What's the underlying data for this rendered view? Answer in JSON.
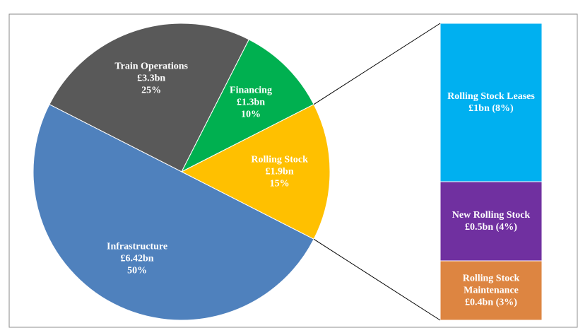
{
  "chart_data": {
    "type": "pie-of-bar",
    "categories": [
      "Train Operations",
      "Financing",
      "Rolling Stock",
      "Infrastructure"
    ],
    "amount_labels": [
      "£3.3bn",
      "£1.3bn",
      "£1.9bn",
      "£6.42bn"
    ],
    "values": [
      25,
      10,
      15,
      50
    ],
    "value_labels": [
      "25%",
      "10%",
      "15%",
      "50%"
    ],
    "colors": [
      "#595959",
      "#00b050",
      "#ffc000",
      "#4f81bd"
    ],
    "detail": {
      "categories": [
        "Rolling Stock Leases",
        "New Rolling Stock",
        "Rolling Stock Maintenance"
      ],
      "values": [
        8,
        4,
        3
      ],
      "value_labels": [
        "£1bn (8%)",
        "£0.5bn (4%)",
        "£0.4bn (3%)"
      ],
      "colors": [
        "#00b0f0",
        "#7030a0",
        "#dd8541"
      ]
    }
  }
}
